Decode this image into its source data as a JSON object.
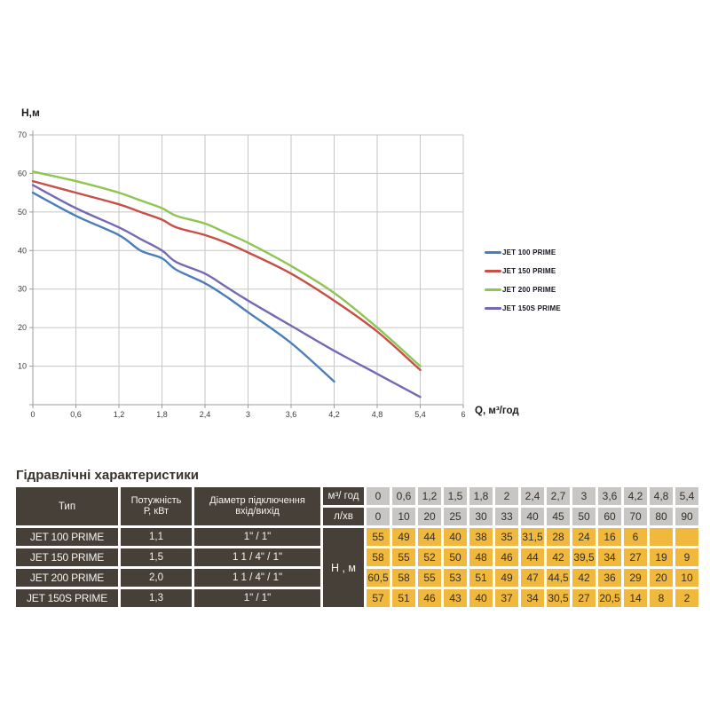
{
  "chart": {
    "y_axis_label": "Н,м",
    "x_axis_label": "Q, м³/год"
  },
  "chart_data": {
    "type": "line",
    "title": "",
    "xlabel": "Q, м³/год",
    "ylabel": "Н,м",
    "xlim": [
      0,
      6
    ],
    "ylim": [
      0,
      70
    ],
    "grid": true,
    "legend_position": "right",
    "x_tick_values": [
      0,
      0.6,
      1.2,
      1.8,
      2.4,
      3,
      3.6,
      4.2,
      4.8,
      5.4,
      6
    ],
    "x_tick_labels": [
      "0",
      "0,6",
      "1,2",
      "1,8",
      "2,4",
      "3",
      "3,6",
      "4,2",
      "4,8",
      "5,4",
      "6"
    ],
    "y_tick_values": [
      70,
      60,
      50,
      40,
      30,
      20,
      10
    ],
    "y_tick_labels": [
      "70",
      "60",
      "50",
      "40",
      "30",
      "20",
      "10"
    ],
    "grid_color": "#c6c6c6",
    "axis_color": "#9b9b9b",
    "series": [
      {
        "name": "JET 100 PRIME",
        "color": "#4a7ebb",
        "points": [
          [
            0,
            55
          ],
          [
            0.6,
            49
          ],
          [
            1.2,
            44
          ],
          [
            1.5,
            40
          ],
          [
            1.8,
            38
          ],
          [
            2,
            35
          ],
          [
            2.4,
            31.5
          ],
          [
            2.7,
            28
          ],
          [
            3,
            24
          ],
          [
            3.6,
            16
          ],
          [
            4.2,
            6
          ]
        ]
      },
      {
        "name": "JET 150 PRIME",
        "color": "#c64f46",
        "points": [
          [
            0,
            58
          ],
          [
            0.6,
            55
          ],
          [
            1.2,
            52
          ],
          [
            1.5,
            50
          ],
          [
            1.8,
            48
          ],
          [
            2,
            46
          ],
          [
            2.4,
            44
          ],
          [
            2.7,
            42
          ],
          [
            3,
            39.5
          ],
          [
            3.6,
            34
          ],
          [
            4.2,
            27
          ],
          [
            4.8,
            19
          ],
          [
            5.4,
            9
          ]
        ]
      },
      {
        "name": "JET 200 PRIME",
        "color": "#8ec553",
        "points": [
          [
            0,
            60.5
          ],
          [
            0.6,
            58
          ],
          [
            1.2,
            55
          ],
          [
            1.5,
            53
          ],
          [
            1.8,
            51
          ],
          [
            2,
            49
          ],
          [
            2.4,
            47
          ],
          [
            2.7,
            44.5
          ],
          [
            3,
            42
          ],
          [
            3.6,
            36
          ],
          [
            4.2,
            29
          ],
          [
            4.8,
            20
          ],
          [
            5.4,
            10
          ]
        ]
      },
      {
        "name": "JET 150S PRIME",
        "color": "#7569b3",
        "points": [
          [
            0,
            57
          ],
          [
            0.6,
            51
          ],
          [
            1.2,
            46
          ],
          [
            1.5,
            43
          ],
          [
            1.8,
            40
          ],
          [
            2,
            37
          ],
          [
            2.4,
            34
          ],
          [
            2.7,
            30.5
          ],
          [
            3,
            27
          ],
          [
            3.6,
            20.5
          ],
          [
            4.2,
            14
          ],
          [
            4.8,
            8
          ],
          [
            5.4,
            2
          ]
        ]
      }
    ]
  },
  "table": {
    "title": "Гідравлічні характеристики",
    "col_headers": {
      "type": "Тип",
      "power": [
        "Потужність",
        "Р, кВт"
      ],
      "diameter": [
        "Діаметр підключення",
        "вхід/вихід"
      ],
      "flow_m3": "м³/ год",
      "flow_l": "л/хв",
      "head": "Н , м"
    },
    "flow_m3_values": [
      "0",
      "0,6",
      "1,2",
      "1,5",
      "1,8",
      "2",
      "2,4",
      "2,7",
      "3",
      "3,6",
      "4,2",
      "4,8",
      "5,4"
    ],
    "flow_l_values": [
      "0",
      "10",
      "20",
      "25",
      "30",
      "33",
      "40",
      "45",
      "50",
      "60",
      "70",
      "80",
      "90"
    ],
    "rows": [
      {
        "type": "JET 100 PRIME",
        "power": "1,1",
        "diameter": "1\" / 1\"",
        "values": [
          "55",
          "49",
          "44",
          "40",
          "38",
          "35",
          "31,5",
          "28",
          "24",
          "16",
          "6",
          "",
          ""
        ]
      },
      {
        "type": "JET 150 PRIME",
        "power": "1,5",
        "diameter": "1 1 / 4\" / 1\"",
        "values": [
          "58",
          "55",
          "52",
          "50",
          "48",
          "46",
          "44",
          "42",
          "39,5",
          "34",
          "27",
          "19",
          "9"
        ]
      },
      {
        "type": "JET 200 PRIME",
        "power": "2,0",
        "diameter": "1 1 / 4\" / 1\"",
        "values": [
          "60,5",
          "58",
          "55",
          "53",
          "51",
          "49",
          "47",
          "44,5",
          "42",
          "36",
          "29",
          "20",
          "10"
        ]
      },
      {
        "type": "JET 150S PRIME",
        "power": "1,3",
        "diameter": "1\" / 1\"",
        "values": [
          "57",
          "51",
          "46",
          "43",
          "40",
          "37",
          "34",
          "30,5",
          "27",
          "20,5",
          "14",
          "8",
          "2"
        ]
      }
    ]
  }
}
